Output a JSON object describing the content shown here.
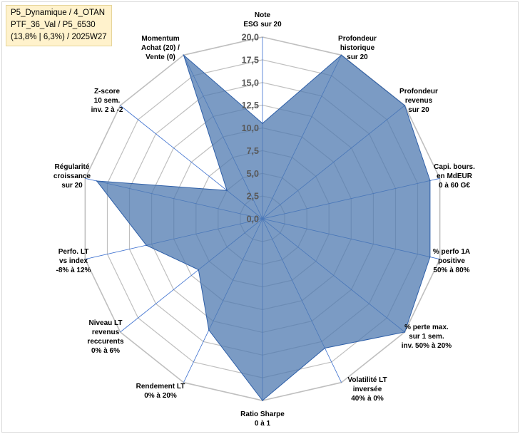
{
  "info_box": {
    "lines": [
      "P5_Dynamique / 4_OTAN",
      "PTF_36_Val / P5_6530",
      "(13,8% | 6,3%) / 2025W27"
    ]
  },
  "chart_data": {
    "type": "radar",
    "title": "",
    "rmin": 0,
    "rmax": 20,
    "tick_step": 2.5,
    "tick_labels": [
      "0,0",
      "2,5",
      "5,0",
      "7,5",
      "10,0",
      "12,5",
      "15,0",
      "17,5",
      "20,0"
    ],
    "grid": true,
    "legend": "none",
    "categories": [
      [
        "Note",
        "ESG sur 20"
      ],
      [
        "Profondeur",
        "historique",
        "sur 20"
      ],
      [
        "Profondeur",
        "revenus",
        "sur 20"
      ],
      [
        "Capi. bours.",
        "en MdEUR",
        "0 à 60 G€"
      ],
      [
        "% perfo 1A",
        "positive",
        "50% à 80%"
      ],
      [
        "% perte max.",
        "sur 1 sem.",
        "inv. 50% à 20%"
      ],
      [
        "Volatilité LT",
        "inversée",
        "40% à 0%"
      ],
      [
        "Ratio Sharpe",
        "0 à 1"
      ],
      [
        "Rendement LT",
        "0% à 20%"
      ],
      [
        "Niveau LT",
        "revenus",
        "reccurents",
        "0% à 6%"
      ],
      [
        "Perfo. LT",
        "vs index",
        "-8% à 12%"
      ],
      [
        "Régularité",
        "croissance",
        "sur 20"
      ],
      [
        "Z-score",
        "10 sem.",
        "inv. 2 à -2"
      ],
      [
        "Momentum",
        "Achat (20) /",
        "Vente (0)"
      ]
    ],
    "series": [
      {
        "values": [
          10.5,
          20,
          20,
          18.9,
          18.9,
          20,
          15.8,
          20,
          13.6,
          9.0,
          13.1,
          18.7,
          5.0,
          20
        ]
      }
    ],
    "colors": {
      "fill": "#4f7ab0",
      "fill_opacity": 0.75,
      "stroke": "#2e5fa8",
      "grid": "#bfbfbf",
      "spoke": "#3b6fcf"
    }
  }
}
